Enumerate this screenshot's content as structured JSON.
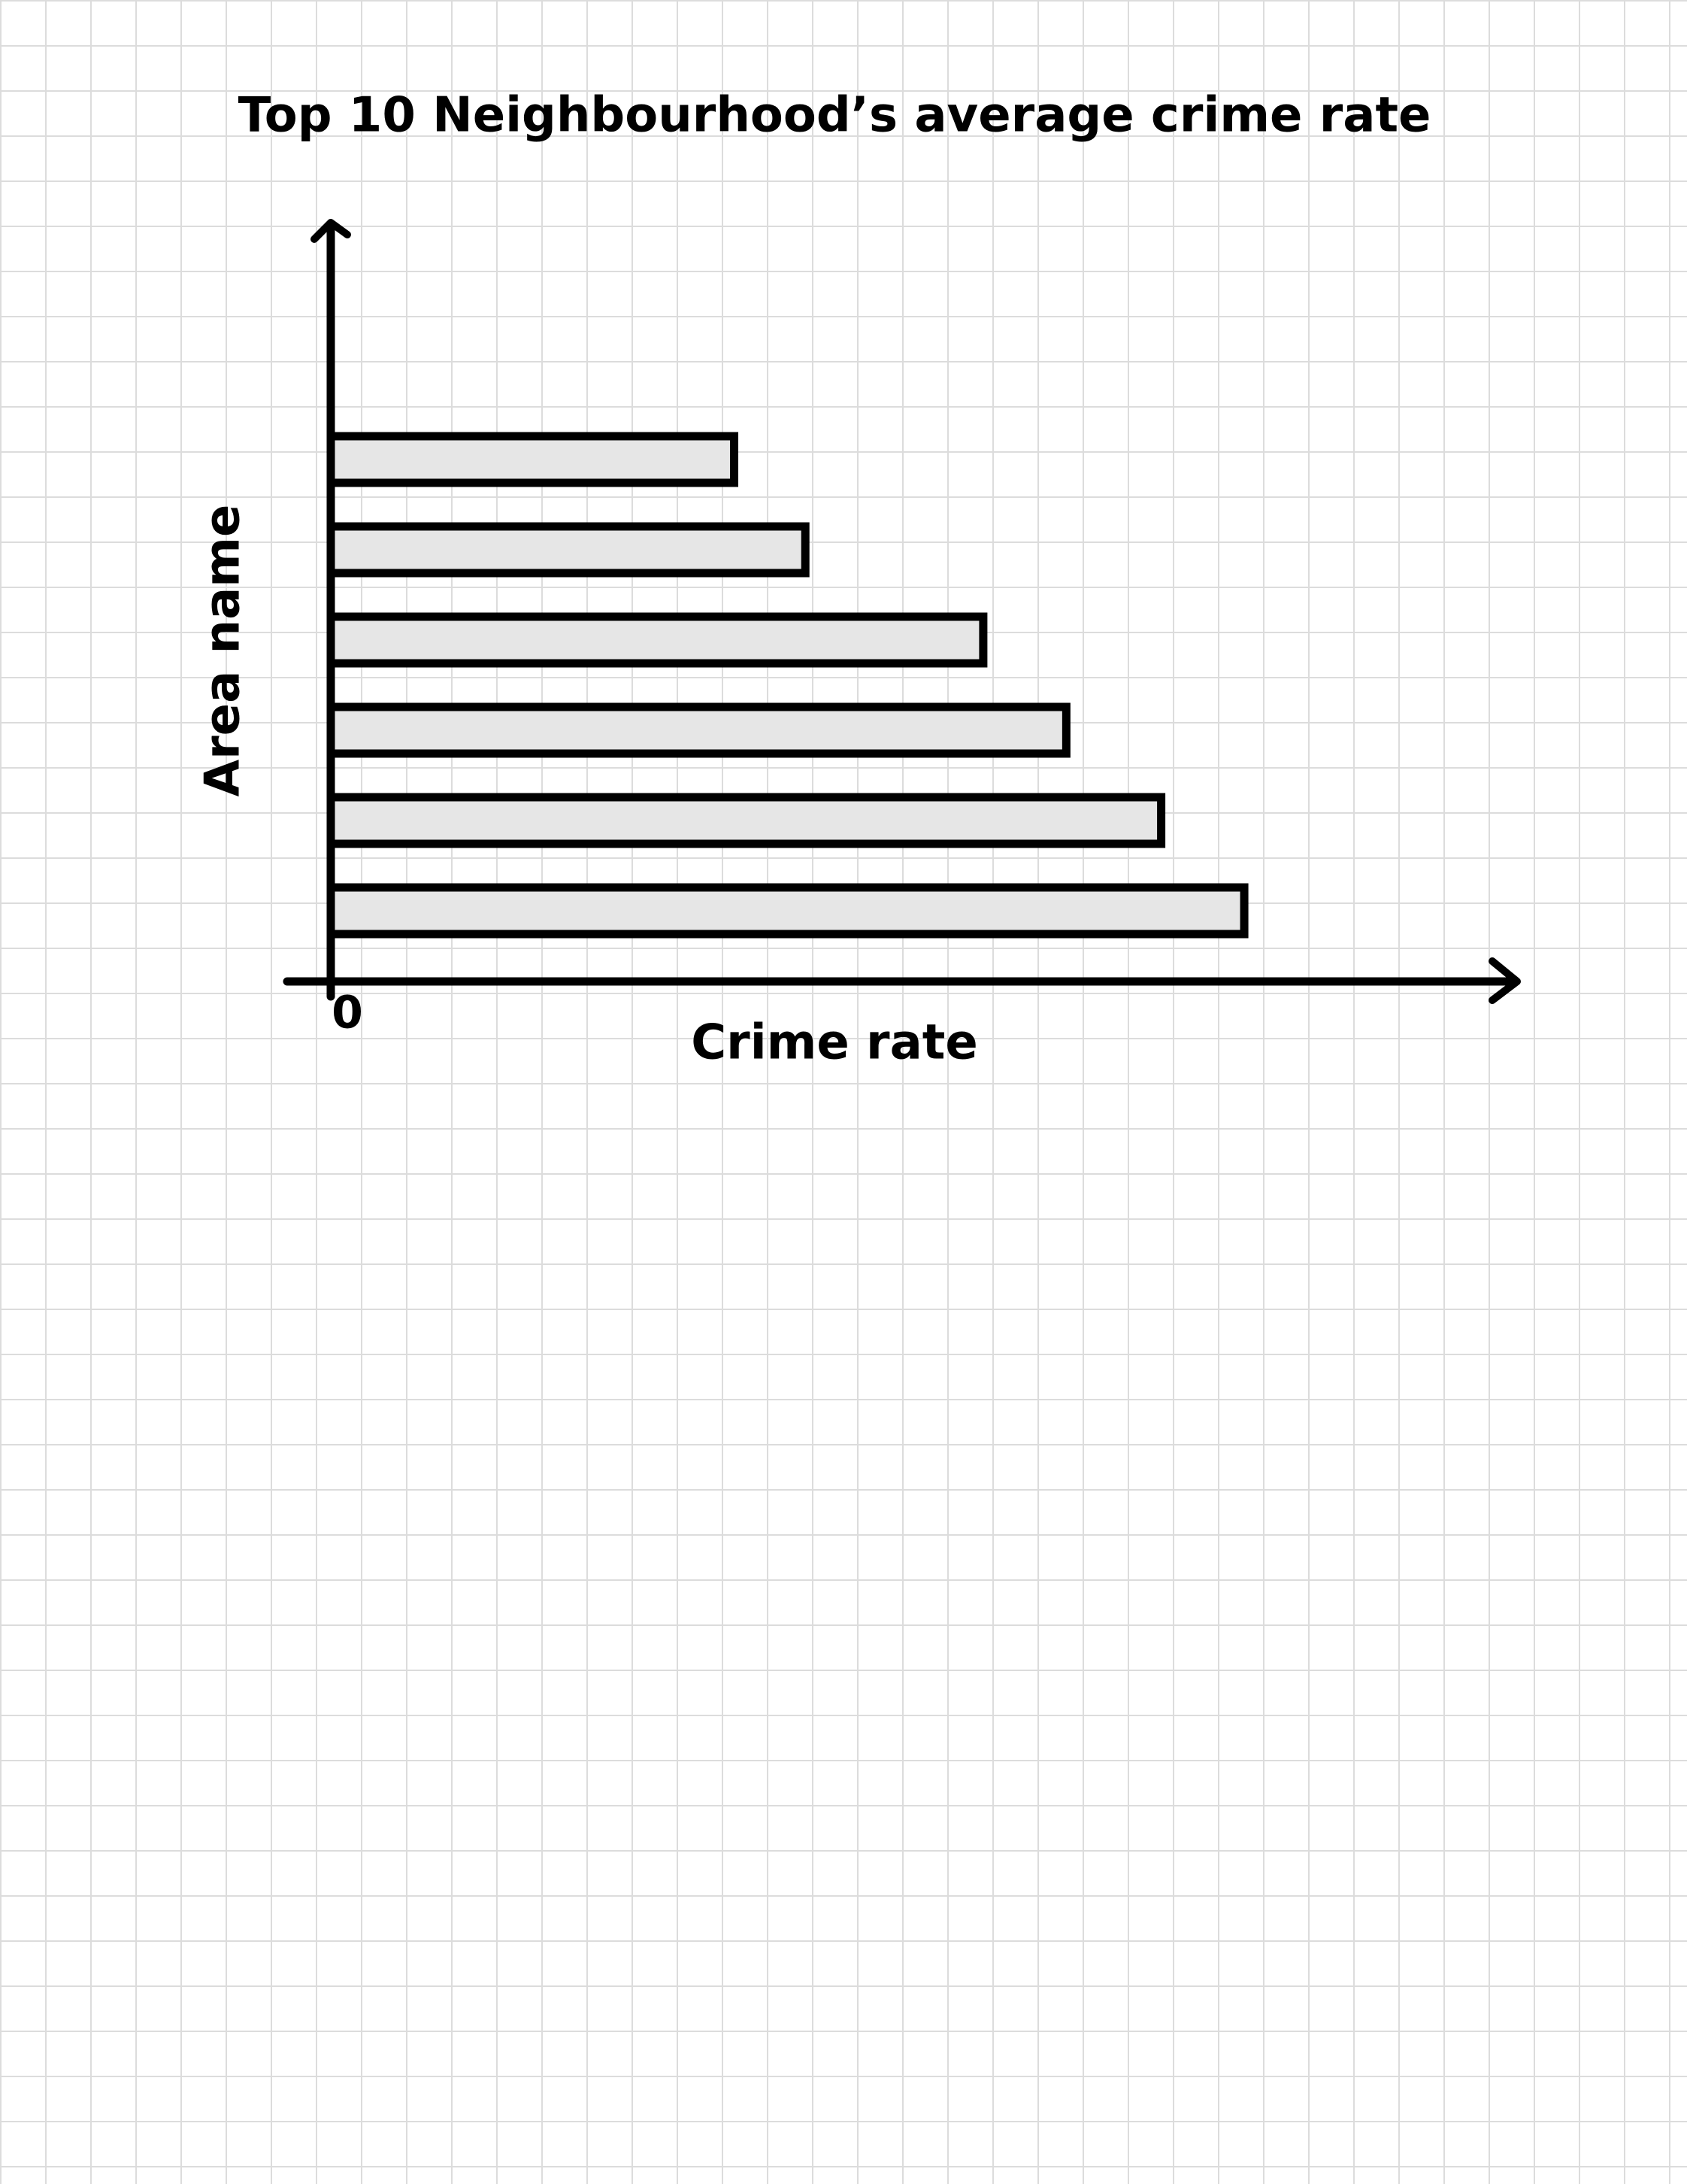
{
  "chart_data": {
    "type": "hbar",
    "title": "Top 10 Neighbourhood’s average crime rate",
    "x_label": "Crime rate",
    "y_label": "Area name",
    "categories": [
      null,
      null,
      null,
      null,
      null,
      null
    ],
    "values": [
      34,
      40,
      55,
      62,
      70,
      77
    ],
    "color": "#e6e6e6",
    "xlim": [
      0,
      100
    ],
    "xticks": [
      0
    ],
    "grid": false
  }
}
